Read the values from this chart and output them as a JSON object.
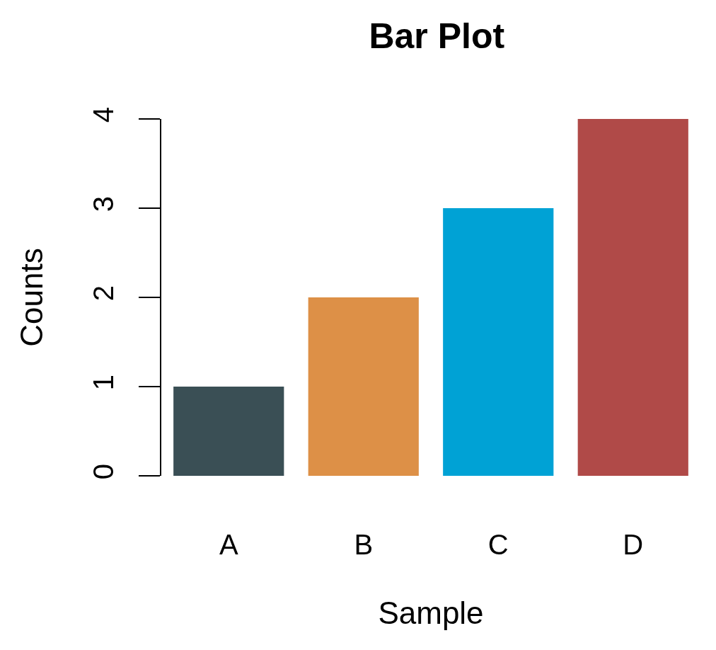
{
  "chart_data": {
    "type": "bar",
    "title": "Bar Plot",
    "xlabel": "Sample",
    "ylabel": "Counts",
    "categories": [
      "A",
      "B",
      "C",
      "D"
    ],
    "values": [
      1,
      2,
      3,
      4
    ],
    "colors": [
      "#3a4f55",
      "#dd9047",
      "#00a2d5",
      "#b04a48"
    ],
    "ylim": [
      0,
      4
    ],
    "yticks": [
      0,
      1,
      2,
      3,
      4
    ],
    "grid": false
  }
}
